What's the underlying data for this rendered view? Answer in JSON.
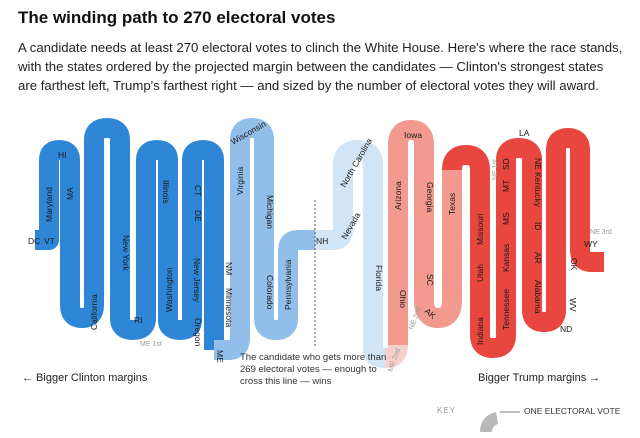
{
  "title": "The winding path to 270 electoral votes",
  "intro": "A candidate needs at least 270 electoral votes to clinch the White House. Here's where the race stands, with the states ordered by the projected margin between the candidates — Clinton's strongest states are farthest left, Trump's farthest right — and sized by the number of electoral votes they will award.",
  "threshold_note": "The candidate who gets more than 269 electoral votes — enough to cross this line — wins",
  "left_label": "← Bigger Clinton margins",
  "right_label": "Bigger Trump margins →",
  "key": {
    "label": "KEY",
    "item": "ONE ELECTORAL VOTE"
  },
  "colors": {
    "clinton_strong": "#2f86d6",
    "clinton_lean": "#92bfe9",
    "clinton_tilt": "#d2e5f7",
    "trump_tilt": "#f8d0cb",
    "trump_lean": "#f29a90",
    "trump_strong": "#e8473f",
    "key_grey": "#b9b9b9"
  },
  "state_labels": {
    "dc": "DC",
    "vt": "VT",
    "md": "Maryland",
    "hi": "HI",
    "ma": "MA",
    "ca": "California",
    "ny": "New York",
    "ri": "RI",
    "il": "Illinois",
    "wa": "Washington",
    "de": "DE",
    "ct": "CT",
    "nj": "New Jersey",
    "or": "Oregon",
    "me": "ME",
    "nm": "NM",
    "mn": "Minnesota",
    "va": "Virginia",
    "wi": "Wisconsin",
    "mi": "Michigan",
    "co": "Colorado",
    "pa": "Pennsylvania",
    "nh": "NH",
    "me1": "ME 1st",
    "nv": "Nevada",
    "nc": "North Carolina",
    "fl": "Florida",
    "oh": "Ohio",
    "az": "Arizona",
    "ia": "Iowa",
    "ga": "Georgia",
    "sc": "SC",
    "ak": "AK",
    "ne2": "NE 2nd",
    "me2": "ME 2nd",
    "tx": "Texas",
    "mo": "Missouri",
    "in": "Indiana",
    "ut": "Utah",
    "ms": "MS",
    "ks": "Kansas",
    "tn": "Tennessee",
    "ne1": "NE 1st",
    "mt": "MT",
    "sd": "SD",
    "la": "LA",
    "ne": "NE",
    "ky": "Kentucky",
    "id": "ID",
    "ar": "AR",
    "al": "Alabama",
    "nd": "ND",
    "wv": "WV",
    "ok": "OK",
    "wy": "WY",
    "ne3": "NE 3rd"
  }
}
